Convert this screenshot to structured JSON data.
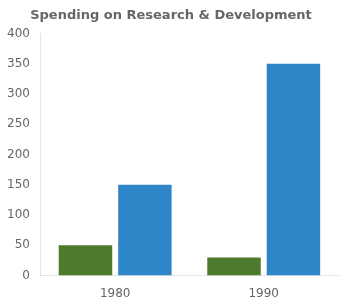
{
  "chart_data": {
    "type": "bar",
    "title": "Spending on Research & Development",
    "categories": [
      "1980",
      "1990"
    ],
    "series": [
      {
        "color": "#4e7a2e",
        "values": [
          50,
          30
        ]
      },
      {
        "color": "#2e86c8",
        "values": [
          150,
          350
        ]
      }
    ],
    "ylim": [
      0,
      400
    ],
    "yticks": [
      0,
      50,
      100,
      150,
      200,
      250,
      300,
      350,
      400
    ],
    "grid": false
  }
}
